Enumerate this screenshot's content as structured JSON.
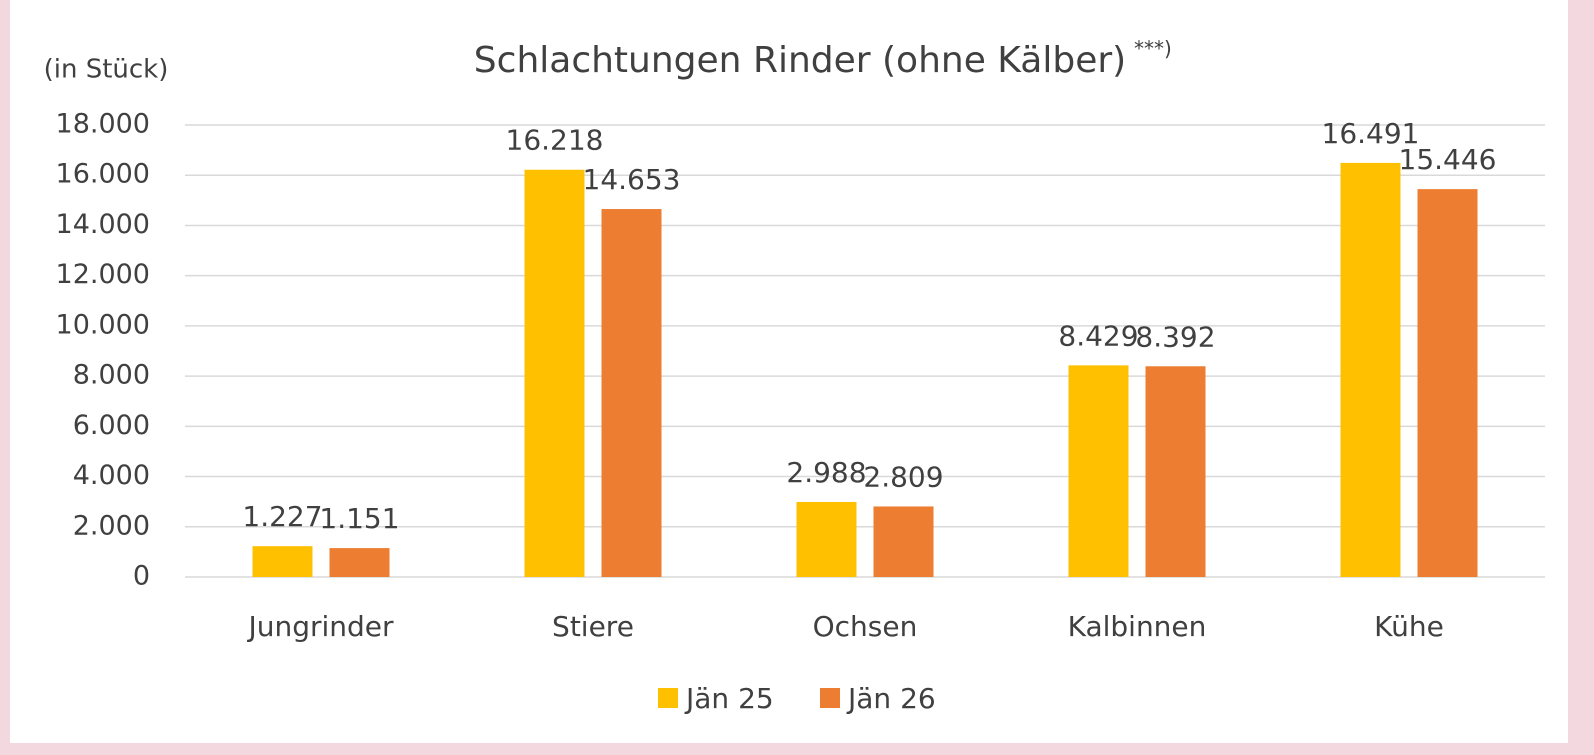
{
  "chart_data": {
    "type": "bar",
    "title": "Schlachtungen Rinder (ohne Kälber)",
    "title_note": "***)",
    "y_label": "(in Stück)",
    "categories": [
      "Jungrinder",
      "Stiere",
      "Ochsen",
      "Kalbinnen",
      "Kühe"
    ],
    "series": [
      {
        "name": "Jän 25",
        "color": "#FFC000",
        "values": [
          1227,
          16218,
          2988,
          8429,
          16491
        ],
        "value_labels": [
          "1.227",
          "16.218",
          "2.988",
          "8.429",
          "16.491"
        ]
      },
      {
        "name": "Jän 26",
        "color": "#ED7D31",
        "values": [
          1151,
          14653,
          2809,
          8392,
          15446
        ],
        "value_labels": [
          "1.151",
          "14.653",
          "2.809",
          "8.392",
          "15.446"
        ]
      }
    ],
    "ylim": [
      0,
      18000
    ],
    "yticks": [
      0,
      {
        "value": 2000,
        "label": "2.000"
      },
      {
        "value": 4000,
        "label": "4.000"
      },
      {
        "value": 6000,
        "label": "6.000"
      },
      {
        "value": 8000,
        "label": "8.000"
      },
      {
        "value": 10000,
        "label": "10.000"
      },
      {
        "value": 12000,
        "label": "12.000"
      },
      {
        "value": 14000,
        "label": "14.000"
      },
      {
        "value": 16000,
        "label": "16.000"
      },
      {
        "value": 18000,
        "label": "18.000"
      }
    ],
    "grid": true,
    "legend": "bottom"
  }
}
